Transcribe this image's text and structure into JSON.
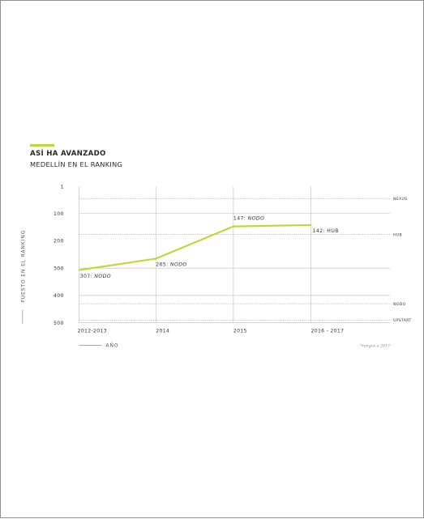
{
  "colors": {
    "accent": "#c2d53a",
    "grid": "#bdbdbd",
    "text": "#2a2a2a",
    "frame": "#8e8e8e"
  },
  "chart_data": {
    "type": "line",
    "title": "ASÍ HA AVANZADO",
    "subtitle": "MEDELLÍN EN EL RANKING",
    "xlabel": "AÑO",
    "ylabel": "PUESTO EN EL RANKING",
    "categories": [
      "2012-2013",
      "2014",
      "2015",
      "2016 - 2017"
    ],
    "values": [
      307,
      265,
      147,
      142
    ],
    "point_labels": [
      {
        "value": "307:",
        "tier": "NODO"
      },
      {
        "value": "265:",
        "tier": "NODO"
      },
      {
        "value": "147:",
        "tier": "NODO"
      },
      {
        "value": "142:",
        "tier": "HUB"
      }
    ],
    "y_ticks": [
      1,
      100,
      200,
      300,
      400,
      500
    ],
    "ylim": [
      1,
      500
    ],
    "y_inverted": true,
    "bands": [
      {
        "label": "NEXUS",
        "value": 45
      },
      {
        "label": "HUB",
        "value": 177
      },
      {
        "label": "NODO",
        "value": 430
      },
      {
        "label": "UPSTART",
        "value": 490
      }
    ],
    "footnote": "*rangos a 2017",
    "grid": true
  }
}
